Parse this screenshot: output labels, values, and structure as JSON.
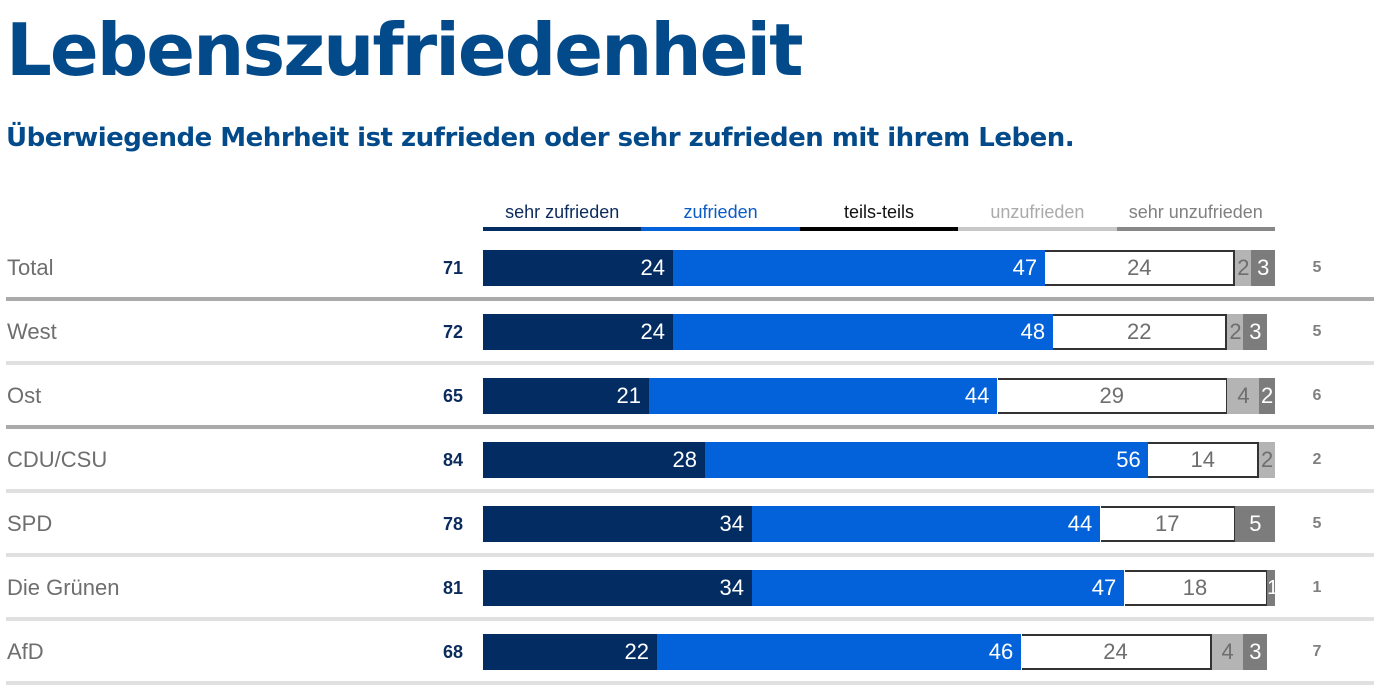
{
  "title": "Lebenszufriedenheit",
  "subtitle": "Überwiegende Mehrheit ist zufrieden oder sehr zufrieden mit ihrem Leben.",
  "colors": {
    "title": "#034a8a",
    "sehr_zufrieden": "#032c63",
    "zufrieden": "#0362d9",
    "teils_teils": "#000000",
    "unzufrieden": "#b4b4b4",
    "sehr_unzufrieden": "#7c7c7c"
  },
  "chart_data": {
    "type": "bar",
    "orientation": "horizontal",
    "stacked": true,
    "title": "Lebenszufriedenheit",
    "subtitle": "Überwiegende Mehrheit ist zufrieden oder sehr zufrieden mit ihrem Leben.",
    "unit": "%",
    "xlim": [
      0,
      100
    ],
    "legend_position": "top",
    "legend": [
      {
        "label": "sehr zufrieden",
        "color": "#032c63",
        "text_color": "#0b2b5c"
      },
      {
        "label": "zufrieden",
        "color": "#0362d9",
        "text_color": "#0b5bc7"
      },
      {
        "label": "teils-teils",
        "color": "#000000",
        "text_color": "#111111"
      },
      {
        "label": "unzufrieden",
        "color": "#c8c8c8",
        "text_color": "#aaaaaa"
      },
      {
        "label": "sehr unzufrieden",
        "color": "#888888",
        "text_color": "#808080"
      }
    ],
    "categories": [
      "Total",
      "West",
      "Ost",
      "CDU/CSU",
      "SPD",
      "Die Grünen",
      "AfD"
    ],
    "series": [
      {
        "name": "sehr zufrieden",
        "values": [
          24,
          24,
          21,
          28,
          34,
          34,
          22
        ]
      },
      {
        "name": "zufrieden",
        "values": [
          47,
          48,
          44,
          56,
          44,
          47,
          46
        ]
      },
      {
        "name": "teils-teils",
        "values": [
          24,
          22,
          29,
          14,
          17,
          18,
          24
        ]
      },
      {
        "name": "unzufrieden",
        "values": [
          2,
          2,
          4,
          2,
          0,
          0,
          4
        ]
      },
      {
        "name": "sehr unzufrieden",
        "values": [
          3,
          3,
          2,
          0,
          5,
          1,
          3
        ]
      }
    ],
    "positive_totals": [
      71,
      72,
      65,
      84,
      78,
      81,
      68
    ],
    "negative_totals": [
      5,
      5,
      6,
      2,
      5,
      1,
      7
    ],
    "group_separators_after": [
      "Total",
      "Ost"
    ]
  }
}
